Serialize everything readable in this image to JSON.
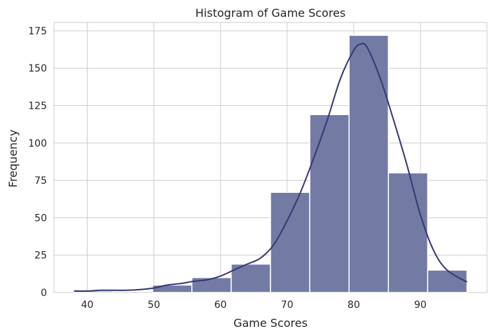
{
  "chart_data": {
    "type": "bar",
    "title": "Histogram of Game Scores",
    "xlabel": "Game Scores",
    "ylabel": "Frequency",
    "bins": [
      {
        "x0": 38.0,
        "x1": 43.9,
        "count": 1
      },
      {
        "x0": 43.9,
        "x1": 49.8,
        "count": 0
      },
      {
        "x0": 49.8,
        "x1": 55.7,
        "count": 5
      },
      {
        "x0": 55.7,
        "x1": 61.6,
        "count": 10
      },
      {
        "x0": 61.6,
        "x1": 67.5,
        "count": 19
      },
      {
        "x0": 67.5,
        "x1": 73.4,
        "count": 67
      },
      {
        "x0": 73.4,
        "x1": 79.3,
        "count": 119
      },
      {
        "x0": 79.3,
        "x1": 85.2,
        "count": 172
      },
      {
        "x0": 85.2,
        "x1": 91.1,
        "count": 80
      },
      {
        "x0": 91.1,
        "x1": 97.0,
        "count": 15
      }
    ],
    "kde": {
      "x": [
        38,
        40,
        42,
        44,
        46,
        48,
        50,
        52,
        54,
        56,
        58,
        60,
        62,
        64,
        66,
        68,
        70,
        72,
        74,
        76,
        78,
        80,
        81,
        82,
        84,
        86,
        88,
        90,
        92,
        94,
        97
      ],
      "y": [
        1,
        1,
        1.5,
        1.5,
        1.5,
        2,
        3,
        5,
        6,
        7.5,
        8.5,
        11,
        15,
        19,
        23,
        32,
        48,
        67,
        90,
        115,
        143,
        162,
        166,
        164,
        143,
        115,
        85,
        52,
        28,
        15,
        7
      ]
    },
    "xticks": [
      40,
      50,
      60,
      70,
      80,
      90
    ],
    "yticks": [
      0,
      25,
      50,
      75,
      100,
      125,
      150,
      175
    ],
    "xlim": [
      35,
      100
    ],
    "ylim": [
      0,
      180.6
    ],
    "grid": true,
    "colors": {
      "bar_fill": "#737aa4",
      "bar_edge": "#ffffff",
      "kde_line": "#363872",
      "grid": "#cccccc",
      "text": "#262626"
    }
  }
}
